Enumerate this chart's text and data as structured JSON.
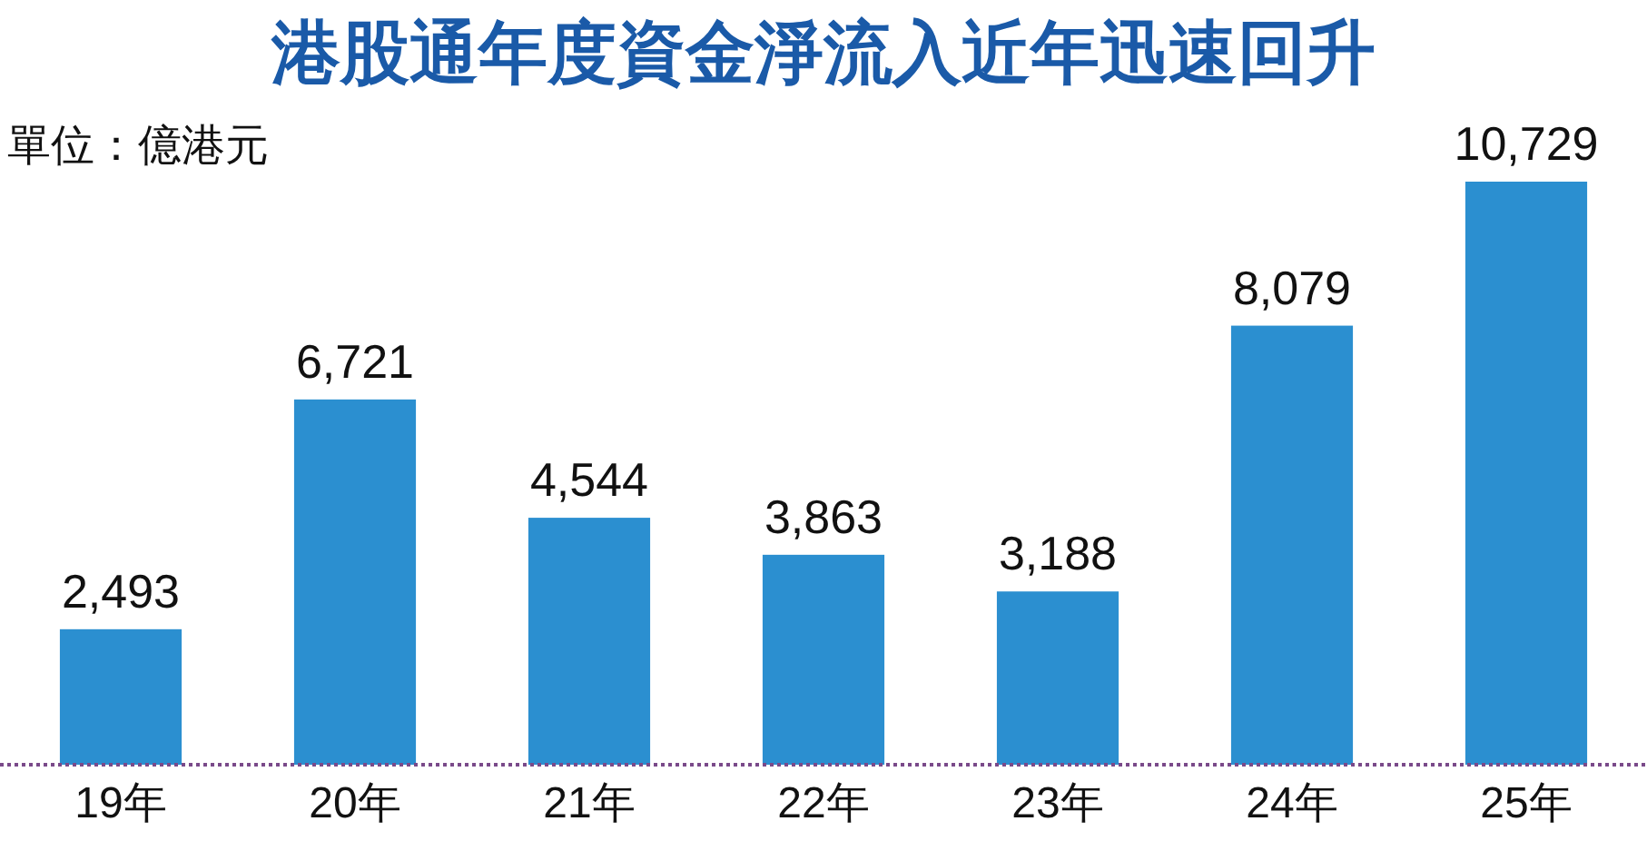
{
  "chart_data": {
    "type": "bar",
    "title": "港股通年度資金淨流入近年迅速回升",
    "annotations": [
      "單位：億港元"
    ],
    "categories": [
      "19年",
      "20年",
      "21年",
      "22年",
      "23年",
      "24年",
      "25年"
    ],
    "values": [
      2493,
      6721,
      4544,
      3863,
      3188,
      8079,
      10729
    ],
    "value_labels": [
      "2,493",
      "6,721",
      "4,544",
      "3,863",
      "3,188",
      "8,079",
      "10,729"
    ],
    "color": "#2b8fd0"
  }
}
